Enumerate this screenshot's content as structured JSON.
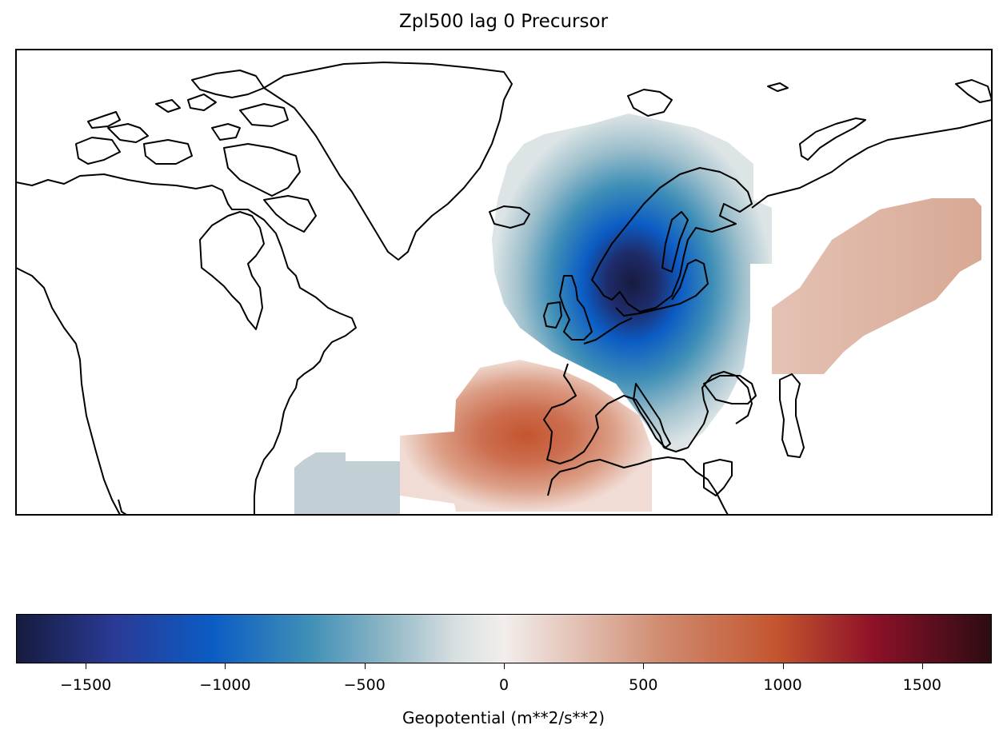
{
  "title": "Zpl500 lag 0 Precursor",
  "map": {
    "type": "map",
    "field": "geopotential anomaly",
    "projection": "PlateCarree",
    "extent": "North Atlantic / Europe / North America",
    "anomalies": [
      {
        "name": "scandinavia-low",
        "peak_value": -1750,
        "color": "#161b3e"
      },
      {
        "name": "iberia-africa-high",
        "peak_value": 800,
        "color": "#c4552f"
      },
      {
        "name": "central-asia-high",
        "peak_value": 450,
        "color": "#d8aa96"
      },
      {
        "name": "subtropical-atlantic-low",
        "peak_value": -350,
        "color": "#c2d0d6"
      }
    ]
  },
  "colorbar": {
    "label": "Geopotential (m**2/s**2)",
    "range": [
      -1750,
      1750
    ],
    "ticks": [
      "−1500",
      "−1000",
      "−500",
      "0",
      "500",
      "1000",
      "1500"
    ],
    "tick_values": [
      -1500,
      -1000,
      -500,
      0,
      500,
      1000,
      1500
    ],
    "colormap": "balance"
  }
}
